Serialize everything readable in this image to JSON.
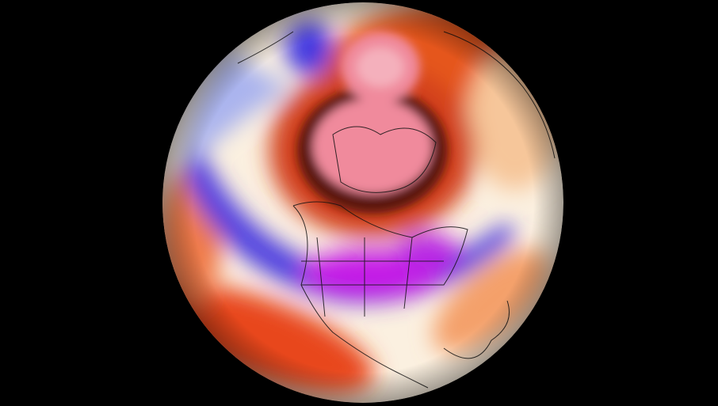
{
  "map": {
    "projection": "orthographic",
    "view": "northern-hemisphere-north-america",
    "colors": {
      "background": "#000000",
      "warm_strong": "#e8471c",
      "warm_light": "#f6c69a",
      "neutral": "#fbf4ea",
      "cool_light": "#aab4ee",
      "cool": "#4338e0",
      "cold_extreme": "#d21ee6",
      "arctic_pink": "#f08a9c",
      "dark_ring": "#5a1708",
      "coastline": "#111111"
    }
  }
}
